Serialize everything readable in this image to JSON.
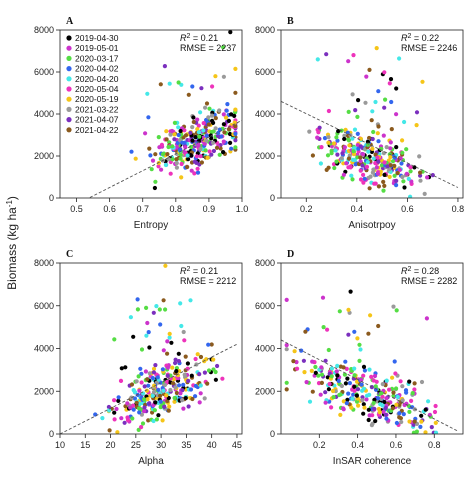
{
  "figure": {
    "ylabel": "Biomass (kg ha",
    "ylabel_sup": "-1",
    "ylabel_close": ")"
  },
  "legend": {
    "placement": "top-left of panel A",
    "entries": [
      {
        "label": "2019-04-30",
        "color": "#000000"
      },
      {
        "label": "2019-05-01",
        "color": "#cc33cc"
      },
      {
        "label": "2020-03-17",
        "color": "#55dd44"
      },
      {
        "label": "2020-04-02",
        "color": "#3366ee"
      },
      {
        "label": "2020-04-20",
        "color": "#44e8e8"
      },
      {
        "label": "2020-05-04",
        "color": "#ee33bb"
      },
      {
        "label": "2020-05-19",
        "color": "#f5c518"
      },
      {
        "label": "2021-03-22",
        "color": "#9a9a9a"
      },
      {
        "label": "2021-04-07",
        "color": "#7b2fbe"
      },
      {
        "label": "2021-04-22",
        "color": "#8b5a1e"
      }
    ]
  },
  "chart_data": [
    {
      "type": "scatter",
      "panel_label": "A",
      "xlabel": "Entropy",
      "ylabel": "",
      "xlim": [
        0.45,
        1.0
      ],
      "ylim": [
        0,
        8000
      ],
      "xticks": [
        0.5,
        0.6,
        0.7,
        0.8,
        0.9,
        1.0
      ],
      "xtick_labels": [
        "0.5",
        "0.6",
        "0.7",
        "0.8",
        "0.9",
        "1.0"
      ],
      "yticks": [
        0,
        2000,
        4000,
        6000,
        8000
      ],
      "ytick_labels": [
        "0",
        "2000",
        "4000",
        "6000",
        "8000"
      ],
      "r2_label": "R",
      "r2_sup": "2",
      "r2_value": " = 0.21",
      "rmse": "RMSE = 2237",
      "trend": {
        "x": [
          0.5,
          1.0
        ],
        "y": [
          -300,
          3700
        ]
      },
      "cluster": {
        "x_center": 0.86,
        "x_spread": 0.09,
        "x_min": 0.47,
        "x_max": 0.98,
        "mode": "pos"
      },
      "seed": 11
    },
    {
      "type": "scatter",
      "panel_label": "B",
      "xlabel": "Anisotrpoy",
      "ylabel": "",
      "xlim": [
        0.1,
        0.82
      ],
      "ylim": [
        0,
        8000
      ],
      "xticks": [
        0.2,
        0.4,
        0.6,
        0.8
      ],
      "xtick_labels": [
        "0.2",
        "0.4",
        "0.6",
        "0.8"
      ],
      "yticks": [
        0,
        2000,
        4000,
        6000,
        8000
      ],
      "ytick_labels": [
        "0",
        "2000",
        "4000",
        "6000",
        "8000"
      ],
      "r2_label": "R",
      "r2_sup": "2",
      "r2_value": " = 0.22",
      "rmse": "RMSE = 2246",
      "trend": {
        "x": [
          0.1,
          0.8
        ],
        "y": [
          4600,
          500
        ]
      },
      "cluster": {
        "x_center": 0.45,
        "x_spread": 0.12,
        "x_min": 0.15,
        "x_max": 0.8,
        "mode": "neg"
      },
      "seed": 23
    },
    {
      "type": "scatter",
      "panel_label": "C",
      "xlabel": "Alpha",
      "ylabel": "",
      "xlim": [
        10,
        46
      ],
      "ylim": [
        0,
        8000
      ],
      "xticks": [
        10,
        15,
        20,
        25,
        30,
        35,
        40,
        45
      ],
      "xtick_labels": [
        "10",
        "15",
        "20",
        "25",
        "30",
        "35",
        "40",
        "45"
      ],
      "yticks": [
        0,
        2000,
        4000,
        6000,
        8000
      ],
      "ytick_labels": [
        "0",
        "2000",
        "4000",
        "6000",
        "8000"
      ],
      "r2_label": "R",
      "r2_sup": "2",
      "r2_value": " = 0.21",
      "rmse": "RMSE = 2212",
      "trend": {
        "x": [
          10,
          45
        ],
        "y": [
          0,
          4200
        ]
      },
      "cluster": {
        "x_center": 30,
        "x_spread": 6,
        "x_min": 12,
        "x_max": 44,
        "mode": "pos"
      },
      "seed": 37
    },
    {
      "type": "scatter",
      "panel_label": "D",
      "xlabel": "InSAR coherence",
      "ylabel": "",
      "xlim": [
        0.0,
        0.95
      ],
      "ylim": [
        0,
        8000
      ],
      "xticks": [
        0.2,
        0.4,
        0.6,
        0.8
      ],
      "xtick_labels": [
        "0.2",
        "0.4",
        "0.6",
        "0.8"
      ],
      "yticks": [
        0,
        2000,
        4000,
        6000,
        8000
      ],
      "ytick_labels": [
        "0",
        "2000",
        "4000",
        "6000",
        "8000"
      ],
      "r2_label": "R",
      "r2_sup": "2",
      "r2_value": " = 0.28",
      "rmse": "RMSE = 2282",
      "trend": {
        "x": [
          0.0,
          0.92
        ],
        "y": [
          4400,
          150
        ]
      },
      "cluster": {
        "x_center": 0.45,
        "x_spread": 0.22,
        "x_min": 0.03,
        "x_max": 0.92,
        "mode": "neg"
      },
      "seed": 53
    }
  ]
}
